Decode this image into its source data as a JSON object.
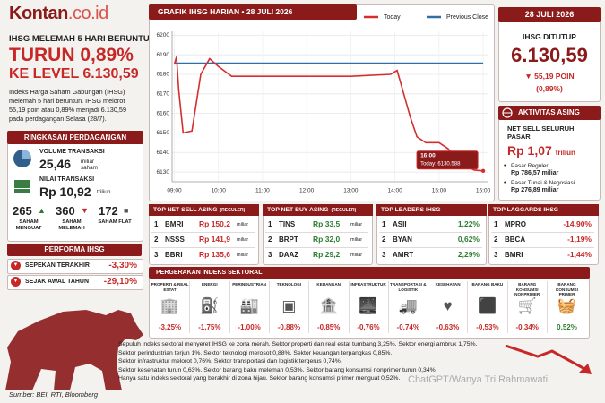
{
  "header": {
    "logo_main": "Kontan",
    "logo_domain": ".co.id"
  },
  "headline": {
    "kicker": "IHSG MELEMAH 5 HARI BERUNTUN",
    "line1": "TURUN 0,89%",
    "line2": "KE LEVEL 6.130,59",
    "body": "Indeks Harga Saham Gabungan (IHSG) melemah 5 hari beruntun. IHSG melorot 55,19 poin atau 0,89% menjadi 6.130,59 pada perdagangan Selasa (28/7)."
  },
  "summary": {
    "title": "RINGKASAN PERDAGANGAN",
    "volume": {
      "label": "VOLUME TRANSAKSI",
      "value": "25,46",
      "unit": "miliar saham"
    },
    "turnover": {
      "label": "NILAI TRANSAKSI",
      "value": "Rp 10,92",
      "unit": "triliun"
    },
    "breadth": [
      {
        "value": "265",
        "label": "SAHAM MENGUAT"
      },
      {
        "value": "360",
        "label": "SAHAM MELEMAH"
      },
      {
        "value": "172",
        "label": "SAHAM FLAT"
      }
    ]
  },
  "performance": {
    "title": "PERFORMA IHSG",
    "rows": [
      {
        "label": "SEPEKAN TERAKHIR",
        "value": "-3,30%"
      },
      {
        "label": "SEJAK AWAL TAHUN",
        "value": "-29,10%"
      }
    ]
  },
  "chart_data": {
    "type": "line",
    "title": "GRAFIK IHSG HARIAN • 28 JULI 2026",
    "x": [
      9.0,
      9.05,
      9.1,
      9.2,
      9.4,
      9.6,
      9.8,
      10.0,
      10.3,
      11.0,
      12.0,
      13.0,
      13.9,
      14.05,
      14.2,
      14.35,
      14.5,
      14.7,
      15.0,
      15.2,
      15.5,
      15.8,
      16.0
    ],
    "xlim": [
      8.95,
      16.1
    ],
    "xticks": [
      {
        "value": 9,
        "label": "09:00"
      },
      {
        "value": 10,
        "label": "10:00"
      },
      {
        "value": 11,
        "label": "11:00"
      },
      {
        "value": 12,
        "label": "12:00"
      },
      {
        "value": 13,
        "label": "13:00"
      },
      {
        "value": 14,
        "label": "14:00"
      },
      {
        "value": 15,
        "label": "15:00"
      },
      {
        "value": 16,
        "label": "16:00"
      }
    ],
    "ylim": [
      6125,
      6202
    ],
    "yticks": [
      6130,
      6140,
      6150,
      6160,
      6170,
      6180,
      6190,
      6200
    ],
    "grid": true,
    "series": [
      {
        "name": "Today",
        "color": "#d32f2f",
        "values": [
          6185,
          6189,
          6172,
          6150,
          6151,
          6180,
          6188,
          6184,
          6179,
          6179,
          6179,
          6179,
          6180,
          6182,
          6170,
          6158,
          6148,
          6145,
          6145,
          6142,
          6134,
          6131,
          6130.588
        ]
      },
      {
        "name": "Previous Close",
        "color": "#2f6fa5",
        "values": [
          6185.78,
          6185.78,
          6185.78,
          6185.78,
          6185.78,
          6185.78,
          6185.78,
          6185.78,
          6185.78,
          6185.78,
          6185.78,
          6185.78,
          6185.78,
          6185.78,
          6185.78,
          6185.78,
          6185.78,
          6185.78,
          6185.78,
          6185.78,
          6185.78,
          6185.78,
          6185.78
        ]
      }
    ],
    "annotations": [
      "16:00",
      "Today: 6130.588"
    ]
  },
  "close": {
    "date": "28 JULI 2026",
    "label": "IHSG DITUTUP",
    "value": "6.130,59",
    "change": "55,19 POIN",
    "pct": "(0,89%)"
  },
  "foreign": {
    "title": "AKTIVITAS ASING",
    "label": "NET SELL SELURUH PASAR",
    "value": "Rp 1,07",
    "unit": "triliun",
    "items": [
      {
        "label": "Pasar Reguler",
        "value": "Rp 786,57 miliar"
      },
      {
        "label": "Pasar Tunai & Negosiasi",
        "value": "Rp 276,89 miliar"
      }
    ]
  },
  "tables": [
    {
      "title": "TOP NET SELL ASING",
      "subtitle": "(REGULER)",
      "rows": [
        {
          "rank": "1",
          "code": "BMRI",
          "value": "Rp 150,2",
          "unit": "miliar"
        },
        {
          "rank": "2",
          "code": "NSSS",
          "value": "Rp 141,9",
          "unit": "miliar"
        },
        {
          "rank": "3",
          "code": "BBRI",
          "value": "Rp 135,6",
          "unit": "miliar"
        }
      ]
    },
    {
      "title": "TOP NET BUY ASING",
      "subtitle": "(REGULER)",
      "rows": [
        {
          "rank": "1",
          "code": "TINS",
          "value": "Rp 33,5",
          "unit": "miliar"
        },
        {
          "rank": "2",
          "code": "BRPT",
          "value": "Rp 32,0",
          "unit": "miliar"
        },
        {
          "rank": "3",
          "code": "DAAZ",
          "value": "Rp 29,2",
          "unit": "miliar"
        }
      ]
    },
    {
      "title": "TOP LEADERS IHSG",
      "rows": [
        {
          "rank": "1",
          "code": "ASII",
          "value": "1,22%"
        },
        {
          "rank": "2",
          "code": "BYAN",
          "value": "0,62%"
        },
        {
          "rank": "3",
          "code": "AMRT",
          "value": "2,29%"
        }
      ]
    },
    {
      "title": "TOP LAGGARDS IHSG",
      "rows": [
        {
          "rank": "1",
          "code": "MPRO",
          "value": "-14,90%"
        },
        {
          "rank": "2",
          "code": "BBCA",
          "value": "-1,19%"
        },
        {
          "rank": "3",
          "code": "BMRI",
          "value": "-1,44%"
        }
      ]
    }
  ],
  "sectors": {
    "title": "PERGERAKAN INDEKS SEKTORAL",
    "items": [
      {
        "name": "PROPERTI & REAL ESTAT",
        "value": "-3,25%"
      },
      {
        "name": "ENERGI",
        "value": "-1,75%"
      },
      {
        "name": "PERINDUSTRIAN",
        "value": "-1,00%"
      },
      {
        "name": "TEKNOLOGI",
        "value": "-0,88%"
      },
      {
        "name": "KEUANGAN",
        "value": "-0,85%"
      },
      {
        "name": "INFRASTRUKTUR",
        "value": "-0,76%"
      },
      {
        "name": "TRANSPORTASI & LOGISTIK",
        "value": "-0,74%"
      },
      {
        "name": "KESEHATAN",
        "value": "-0,63%"
      },
      {
        "name": "BARANG BAKU",
        "value": "-0,53%"
      },
      {
        "name": "BARANG KONSUMSI NONPRIMER",
        "value": "-0,34%"
      },
      {
        "name": "BARANG KONSUMSI PRIMER",
        "value": "0,52%"
      }
    ]
  },
  "notes": [
    "Sepuluh indeks sektoral menyeret IHSG ke zona merah. Sektor properti dan real estat tumbang 3,25%. Sektor energi ambruk 1,75%.",
    "Sektor perindustrian terjun 1%. Sektor teknologi merosot 0,88%. Sektor keuangan terpangkas 0,85%.",
    "Sektor infrastruktur melorot 0,76%. Sektor transportasi dan logistik tergerus 0,74%.",
    "Sektor kesehatan turun 0,63%. Sektor barang baku melemah 0,53%. Sektor barang konsumsi nonprimer turun 0,34%.",
    "Hanya satu indeks sektoral yang berakhir di zona hijau. Sektor barang konsumsi primer menguat 0,52%."
  ],
  "source": "Sumber: BEI, RTI, Bloomberg",
  "credit": "ChatGPT/Wanya Tri Rahmawati"
}
